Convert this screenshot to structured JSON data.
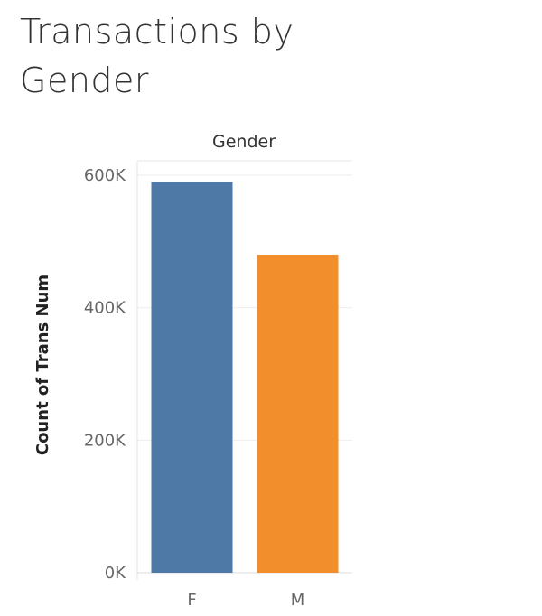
{
  "chart_data": {
    "type": "bar",
    "title": "Transactions by Gender",
    "column_header": "Gender",
    "categories": [
      "F",
      "M"
    ],
    "values": [
      590000,
      480000
    ],
    "ylabel": "Count of Trans Num",
    "xlabel": "",
    "ylim": [
      0,
      600000
    ],
    "yticks": [
      0,
      200000,
      400000,
      600000
    ],
    "ytick_labels": [
      "0K",
      "200K",
      "400K",
      "600K"
    ],
    "colors": [
      "#4e79a7",
      "#f28e2b"
    ],
    "grid": true,
    "legend": "none"
  }
}
